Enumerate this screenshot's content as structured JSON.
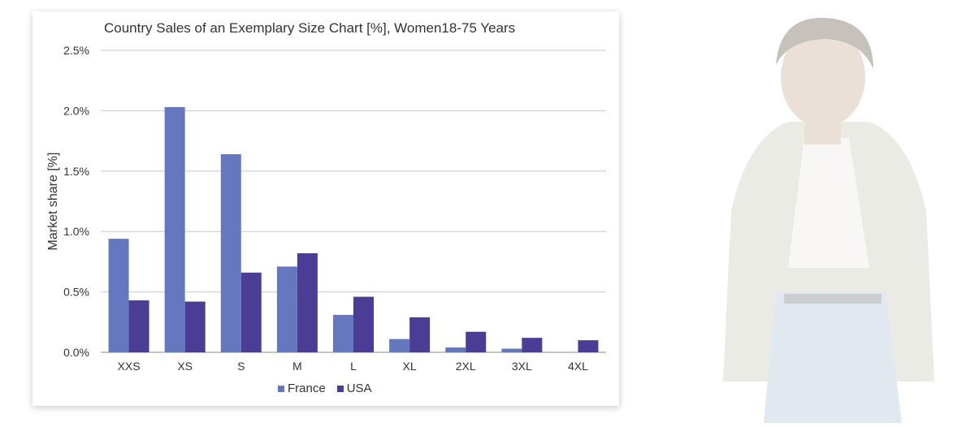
{
  "chart_data": {
    "type": "bar",
    "title": "Country Sales of an Exemplary Size Chart [%], Women18-75 Years",
    "xlabel": "",
    "ylabel": "Market share [%]",
    "ylim": [
      0,
      2.5
    ],
    "yticks": [
      0,
      0.5,
      1.0,
      1.5,
      2.0,
      2.5
    ],
    "ytick_labels": [
      "0.0%",
      "0.5%",
      "1.0%",
      "1.5%",
      "2.0%",
      "2.5%"
    ],
    "categories": [
      "XXS",
      "XS",
      "S",
      "M",
      "L",
      "XL",
      "2XL",
      "3XL",
      "4XL"
    ],
    "series": [
      {
        "name": "France",
        "color": "#6577bf",
        "values": [
          0.94,
          2.03,
          1.64,
          0.71,
          0.31,
          0.11,
          0.04,
          0.03,
          0.0
        ]
      },
      {
        "name": "USA",
        "color": "#4b3d96",
        "values": [
          0.43,
          0.42,
          0.66,
          0.82,
          0.46,
          0.29,
          0.17,
          0.12,
          0.1
        ]
      }
    ],
    "legend_position": "bottom-center",
    "grid": true
  },
  "photo": {
    "icon": "person-photo-icon",
    "description_color": "#e9ebe6"
  }
}
